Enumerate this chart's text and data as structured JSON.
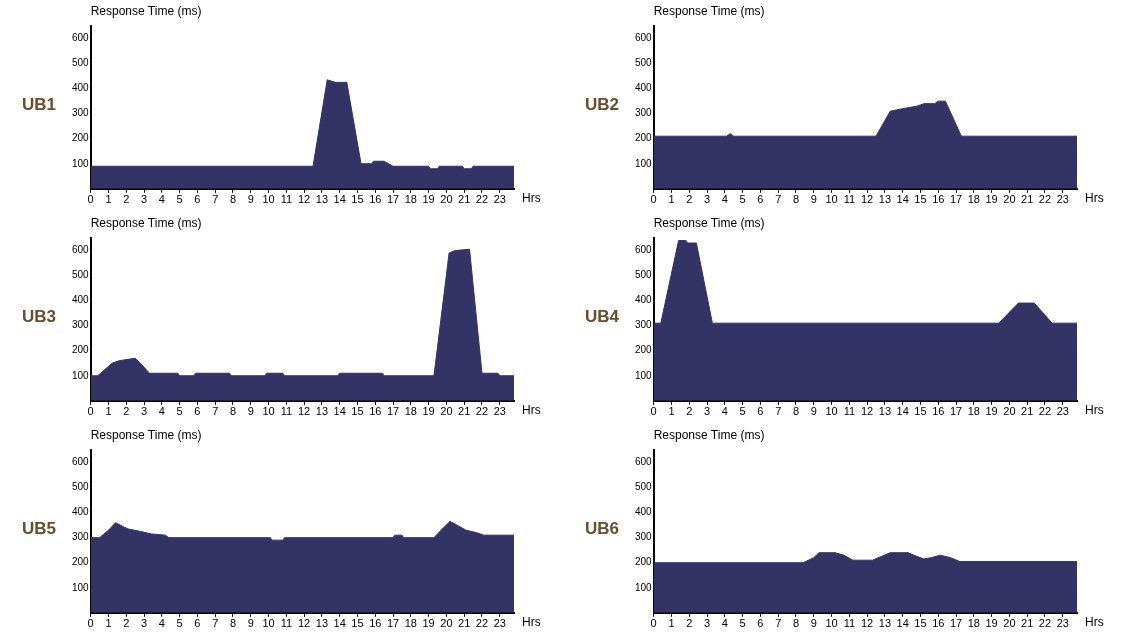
{
  "chart_data": [
    {
      "type": "area",
      "title": "UB1",
      "ylabel": "Response Time (ms)",
      "xlabel": "Hrs",
      "color": "#333366",
      "xlim": [
        0,
        23.8
      ],
      "ylim": [
        0,
        650
      ],
      "xticks": [
        0,
        1,
        2,
        3,
        4,
        5,
        6,
        7,
        8,
        9,
        10,
        11,
        12,
        13,
        14,
        15,
        16,
        17,
        18,
        19,
        20,
        21,
        22,
        23
      ],
      "yticks": [
        100,
        200,
        300,
        400,
        500,
        600
      ],
      "x": [
        0,
        12.5,
        13.3,
        13.75,
        14.4,
        15.2,
        15.8,
        15.9,
        16.5,
        17.0,
        19.0,
        19.1,
        19.5,
        19.6,
        20.9,
        21.0,
        21.4,
        21.5,
        23.8
      ],
      "values": [
        90,
        90,
        435,
        425,
        425,
        100,
        100,
        110,
        110,
        90,
        90,
        80,
        80,
        90,
        90,
        80,
        80,
        90,
        90
      ]
    },
    {
      "type": "area",
      "title": "UB2",
      "ylabel": "Response Time (ms)",
      "xlabel": "Hrs",
      "color": "#333366",
      "xlim": [
        0,
        23.8
      ],
      "ylim": [
        0,
        650
      ],
      "xticks": [
        0,
        1,
        2,
        3,
        4,
        5,
        6,
        7,
        8,
        9,
        10,
        11,
        12,
        13,
        14,
        15,
        16,
        17,
        18,
        19,
        20,
        21,
        22,
        23
      ],
      "yticks": [
        100,
        200,
        300,
        400,
        500,
        600
      ],
      "x": [
        0,
        4.1,
        4.3,
        4.5,
        12.5,
        13.3,
        14.0,
        14.8,
        15.2,
        15.8,
        16.0,
        16.4,
        17.3,
        23.8
      ],
      "values": [
        210,
        210,
        220,
        210,
        210,
        310,
        320,
        330,
        340,
        340,
        350,
        350,
        210,
        210
      ]
    },
    {
      "type": "area",
      "title": "UB3",
      "ylabel": "Response Time (ms)",
      "xlabel": "Hrs",
      "color": "#333366",
      "xlim": [
        0,
        23.8
      ],
      "ylim": [
        0,
        650
      ],
      "xticks": [
        0,
        1,
        2,
        3,
        4,
        5,
        6,
        7,
        8,
        9,
        10,
        11,
        12,
        13,
        14,
        15,
        16,
        17,
        18,
        19,
        20,
        21,
        22,
        23
      ],
      "yticks": [
        100,
        200,
        300,
        400,
        500,
        600
      ],
      "x": [
        0,
        0.4,
        1.2,
        1.6,
        2.5,
        2.8,
        3.3,
        4.9,
        5.0,
        5.8,
        5.9,
        7.8,
        7.9,
        9.8,
        9.9,
        10.8,
        10.9,
        13.9,
        14.0,
        16.4,
        16.5,
        19.3,
        20.15,
        20.5,
        21.3,
        22.0,
        22.9,
        23.0,
        23.8
      ],
      "values": [
        100,
        100,
        150,
        160,
        170,
        150,
        110,
        110,
        100,
        100,
        110,
        110,
        100,
        100,
        110,
        110,
        100,
        100,
        110,
        110,
        100,
        100,
        590,
        600,
        605,
        110,
        110,
        100,
        100
      ]
    },
    {
      "type": "area",
      "title": "UB4",
      "ylabel": "Response Time (ms)",
      "xlabel": "Hrs",
      "color": "#333366",
      "xlim": [
        0,
        23.8
      ],
      "ylim": [
        0,
        650
      ],
      "xticks": [
        0,
        1,
        2,
        3,
        4,
        5,
        6,
        7,
        8,
        9,
        10,
        11,
        12,
        13,
        14,
        15,
        16,
        17,
        18,
        19,
        20,
        21,
        22,
        23
      ],
      "yticks": [
        100,
        200,
        300,
        400,
        500,
        600
      ],
      "x": [
        0,
        0.4,
        1.4,
        1.8,
        1.9,
        2.4,
        3.3,
        19.4,
        20.5,
        21.4,
        22.4,
        23.8
      ],
      "values": [
        310,
        310,
        640,
        640,
        630,
        630,
        310,
        310,
        390,
        390,
        310,
        310
      ]
    },
    {
      "type": "area",
      "title": "UB5",
      "ylabel": "Response Time (ms)",
      "xlabel": "Hrs",
      "color": "#333366",
      "xlim": [
        0,
        23.8
      ],
      "ylim": [
        0,
        650
      ],
      "xticks": [
        0,
        1,
        2,
        3,
        4,
        5,
        6,
        7,
        8,
        9,
        10,
        11,
        12,
        13,
        14,
        15,
        16,
        17,
        18,
        19,
        20,
        21,
        22,
        23
      ],
      "yticks": [
        100,
        200,
        300,
        400,
        500,
        600
      ],
      "x": [
        0,
        0.5,
        1.0,
        1.4,
        1.8,
        2.1,
        2.8,
        3.4,
        4.2,
        4.4,
        10.1,
        10.2,
        10.8,
        10.9,
        17.0,
        17.1,
        17.5,
        17.6,
        19.3,
        19.7,
        20.2,
        20.6,
        21.1,
        21.7,
        22.1,
        23.8
      ],
      "values": [
        300,
        300,
        330,
        360,
        345,
        335,
        325,
        315,
        310,
        300,
        300,
        290,
        290,
        300,
        300,
        310,
        310,
        300,
        300,
        330,
        365,
        350,
        330,
        320,
        310,
        310
      ]
    },
    {
      "type": "area",
      "title": "UB6",
      "ylabel": "Response Time (ms)",
      "xlabel": "Hrs",
      "color": "#333366",
      "xlim": [
        0,
        23.8
      ],
      "ylim": [
        0,
        650
      ],
      "xticks": [
        0,
        1,
        2,
        3,
        4,
        5,
        6,
        7,
        8,
        9,
        10,
        11,
        12,
        13,
        14,
        15,
        16,
        17,
        18,
        19,
        20,
        21,
        22,
        23
      ],
      "yticks": [
        100,
        200,
        300,
        400,
        500,
        600
      ],
      "x": [
        0,
        8.4,
        9.0,
        9.3,
        10.2,
        10.7,
        11.2,
        12.3,
        12.8,
        13.3,
        14.3,
        14.8,
        15.2,
        15.6,
        16.1,
        16.7,
        17.2,
        23.8
      ],
      "values": [
        200,
        200,
        220,
        240,
        240,
        230,
        210,
        210,
        225,
        240,
        240,
        225,
        215,
        220,
        230,
        220,
        205,
        205
      ]
    }
  ]
}
